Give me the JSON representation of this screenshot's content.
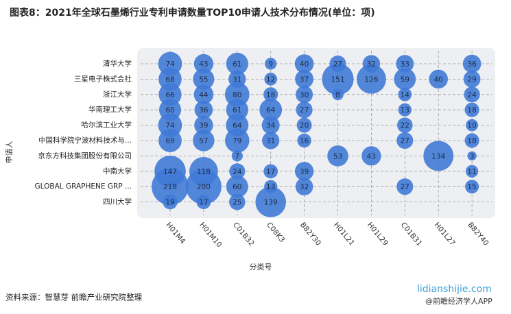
{
  "chart_data": {
    "type": "bubble",
    "title": "图表8：2021年全球石墨烯行业专利申请数量TOP10申请人技术分布情况(单位：项)",
    "x_label": "分类号",
    "y_label": "申请人",
    "x_categories": [
      "H01M4",
      "H01M10",
      "C01B32",
      "C08K3",
      "B82Y30",
      "H01L21",
      "H01L29",
      "C01B31",
      "H01L27",
      "B82Y40"
    ],
    "y_categories": [
      "清华大学",
      "三星电子株式会社",
      "浙江大学",
      "华南理工大学",
      "哈尔滨工业大学",
      "中国科学院宁波材料技术与...",
      "京东方科技集团股份有限公司",
      "中南大学",
      "GLOBAL GRAPHENE GRP ...",
      "四川大学"
    ],
    "values": [
      [
        74,
        43,
        61,
        9,
        40,
        27,
        32,
        33,
        null,
        36
      ],
      [
        68,
        55,
        31,
        12,
        37,
        151,
        126,
        59,
        40,
        29
      ],
      [
        66,
        44,
        80,
        18,
        30,
        8,
        null,
        14,
        null,
        24
      ],
      [
        60,
        36,
        61,
        64,
        27,
        null,
        null,
        13,
        null,
        18
      ],
      [
        74,
        39,
        64,
        34,
        20,
        null,
        null,
        22,
        null,
        10
      ],
      [
        69,
        57,
        79,
        31,
        16,
        null,
        null,
        27,
        null,
        18
      ],
      [
        null,
        null,
        7,
        null,
        null,
        53,
        43,
        null,
        134,
        3
      ],
      [
        147,
        118,
        24,
        17,
        39,
        null,
        null,
        null,
        null,
        11
      ],
      [
        218,
        200,
        60,
        13,
        32,
        null,
        null,
        27,
        null,
        15
      ],
      [
        19,
        17,
        25,
        139,
        null,
        null,
        null,
        null,
        null,
        null
      ]
    ],
    "color": "#3f7ad6",
    "grid": true
  },
  "source": "资料来源：智慧芽 前瞻产业研究院整理",
  "site": "lidianshijie.com",
  "brand": "@前瞻经济学人APP"
}
